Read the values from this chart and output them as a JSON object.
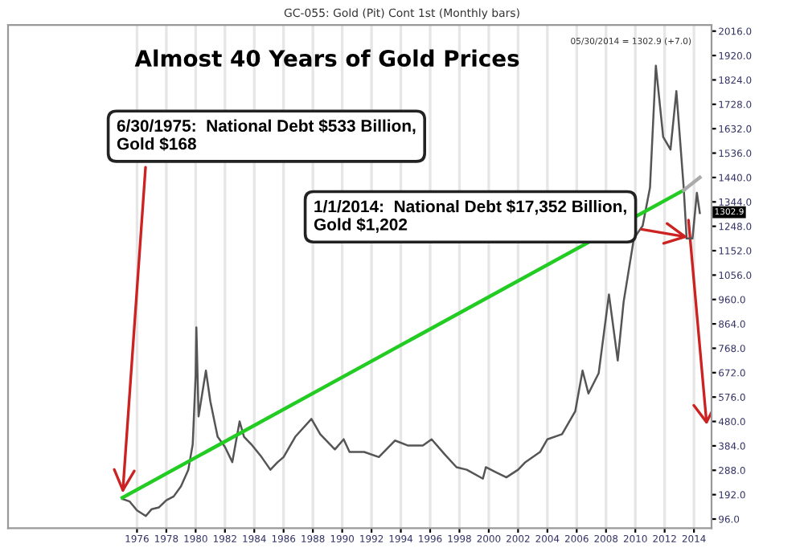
{
  "chart_data": {
    "type": "line",
    "title": "Almost 40 Years of Gold Prices",
    "subtitle": "GC-055: Gold (Pit) Cont 1st (Monthly bars)",
    "xlim": [
      1967.2,
      2015.2
    ],
    "xticks": [
      1976,
      1978,
      1980,
      1982,
      1984,
      1986,
      1988,
      1990,
      1992,
      1994,
      1996,
      1998,
      2000,
      2002,
      2004,
      2006,
      2008,
      2010,
      2012,
      2014
    ],
    "ylim": [
      60,
      2040
    ],
    "yticks": [
      {
        "value": 96,
        "label": "96.0"
      },
      {
        "value": 192,
        "label": "192.0"
      },
      {
        "value": 288,
        "label": "288.0"
      },
      {
        "value": 384,
        "label": "384.0"
      },
      {
        "value": 480,
        "label": "480.0"
      },
      {
        "value": 576,
        "label": "576.0"
      },
      {
        "value": 672,
        "label": "672.0"
      },
      {
        "value": 768,
        "label": "768.0"
      },
      {
        "value": 864,
        "label": "864.0"
      },
      {
        "value": 960,
        "label": "960.0"
      },
      {
        "value": 1056,
        "label": "1056.0"
      },
      {
        "value": 1152,
        "label": "1152.0"
      },
      {
        "value": 1248,
        "label": "1248.0"
      },
      {
        "value": 1344,
        "label": "1344.0"
      },
      {
        "value": 1440,
        "label": "1440.0"
      },
      {
        "value": 1536,
        "label": "1536.0"
      },
      {
        "value": 1632,
        "label": "1632.0"
      },
      {
        "value": 1728,
        "label": "1728.0"
      },
      {
        "value": 1824,
        "label": "1824.0"
      },
      {
        "value": 1920,
        "label": "1920.0"
      },
      {
        "value": 2016,
        "label": "2016.0"
      }
    ],
    "grid": "x",
    "legend": false,
    "series": [
      {
        "color": "#555555",
        "x": [
          1975.0,
          1975.5,
          1976.0,
          1976.6,
          1977.0,
          1977.5,
          1978.0,
          1978.5,
          1979.0,
          1979.5,
          1979.8,
          1980.0,
          1980.05,
          1980.2,
          1980.7,
          1981.0,
          1981.5,
          1982.0,
          1982.5,
          1983.0,
          1983.3,
          1983.8,
          1984.5,
          1985.1,
          1985.6,
          1986.0,
          1986.8,
          1987.9,
          1988.5,
          1989.5,
          1990.1,
          1990.5,
          1991.5,
          1992.5,
          1993.6,
          1994.5,
          1995.5,
          1996.1,
          1997.0,
          1997.8,
          1998.5,
          1999.6,
          1999.8,
          2000.5,
          2001.2,
          2002.0,
          2002.5,
          2003.5,
          2004.0,
          2005.0,
          2005.9,
          2006.4,
          2006.8,
          2007.5,
          2008.2,
          2008.8,
          2009.2,
          2009.9,
          2010.5,
          2011.0,
          2011.4,
          2011.9,
          2012.4,
          2012.8,
          2013.3,
          2013.5,
          2013.9,
          2014.2,
          2014.4
        ],
        "values": [
          175,
          165,
          130,
          108,
          135,
          142,
          170,
          185,
          225,
          290,
          390,
          660,
          850,
          500,
          680,
          560,
          420,
          380,
          320,
          480,
          420,
          390,
          340,
          290,
          320,
          340,
          420,
          490,
          430,
          370,
          410,
          360,
          360,
          340,
          405,
          385,
          385,
          410,
          350,
          300,
          290,
          255,
          300,
          280,
          260,
          290,
          320,
          360,
          410,
          430,
          520,
          680,
          590,
          670,
          980,
          720,
          950,
          1200,
          1250,
          1400,
          1880,
          1600,
          1550,
          1780,
          1400,
          1200,
          1200,
          1380,
          1300
        ]
      },
      {
        "color": "#22cc22",
        "x": [
          1975.0,
          2013.3
        ],
        "values": [
          180,
          1390
        ]
      },
      {
        "color": "#aaaaaa",
        "x": [
          2013.3,
          2014.4
        ],
        "values": [
          1390,
          1440
        ]
      }
    ],
    "annotations": [
      {
        "text": "6/30/1975:  National Debt $533 Billion,\nGold $168",
        "x": 1975.0,
        "y": 180
      },
      {
        "text": "1/1/2014:  National Debt $17,352 Billion,\nGold $1,202",
        "x": 2013.9,
        "y": 1202
      },
      "05/30/2014 = 1302.9 (+7.0)",
      "1302.9"
    ]
  }
}
